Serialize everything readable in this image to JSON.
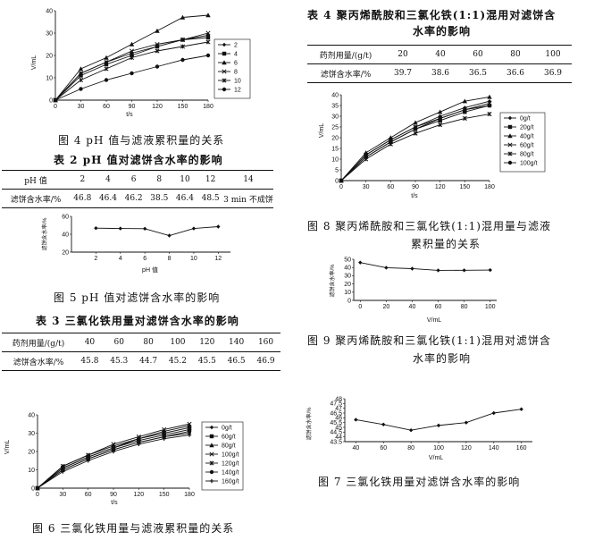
{
  "left": {
    "fig4": {
      "caption": "图 4    pH 值与滤液累积量的关系",
      "ylabel": "V/mL",
      "xlabel": "t/s",
      "yticks": [
        "0",
        "10",
        "20",
        "30",
        "40"
      ],
      "xticks": [
        "0",
        "30",
        "60",
        "90",
        "120",
        "150",
        "180"
      ],
      "legend": [
        "2",
        "4",
        "6",
        "8",
        "10",
        "12"
      ]
    },
    "table2": {
      "caption": "表 2    pH 值对滤饼含水率的影响",
      "header": [
        "pH 值",
        "2",
        "4",
        "6",
        "8",
        "10",
        "12",
        "14"
      ],
      "row": [
        "滤饼含水率/%",
        "46.8",
        "46.4",
        "46.2",
        "38.5",
        "46.4",
        "48.5",
        "3 min 不成饼"
      ]
    },
    "fig5": {
      "caption": "图 5    pH 值对滤饼含水率的影响",
      "ylabel": "滤饼含水率/%",
      "xlabel": "pH 值",
      "yticks": [
        "20",
        "40",
        "60"
      ],
      "xticks": [
        "2",
        "4",
        "6",
        "8",
        "10",
        "12"
      ]
    },
    "table3": {
      "caption": "表 3    三氯化铁用量对滤饼含水率的影响",
      "header": [
        "药剂用量/(g/t)",
        "40",
        "60",
        "80",
        "100",
        "120",
        "140",
        "160"
      ],
      "row": [
        "滤饼含水率/%",
        "45.8",
        "45.3",
        "44.7",
        "45.2",
        "45.5",
        "46.5",
        "46.9"
      ]
    },
    "fig6": {
      "caption": "图 6    三氯化铁用量与滤液累积量的关系",
      "ylabel": "V/mL",
      "xlabel": "t/s",
      "yticks": [
        "0",
        "10",
        "20",
        "30",
        "40"
      ],
      "xticks": [
        "0",
        "30",
        "60",
        "90",
        "120",
        "150",
        "180"
      ],
      "legend": [
        "0g/t",
        "60g/t",
        "80g/t",
        "100g/t",
        "120g/t",
        "140g/t",
        "160g/t"
      ]
    }
  },
  "right": {
    "table4": {
      "caption_line1": "表 4    聚丙烯酰胺和三氯化铁(1:1)混用对滤饼含",
      "caption_line2": "水率的影响",
      "header": [
        "药剂用量/(g/t)",
        "20",
        "40",
        "60",
        "80",
        "100"
      ],
      "row": [
        "滤饼含水率/%",
        "39.7",
        "38.6",
        "36.5",
        "36.6",
        "36.9"
      ]
    },
    "fig8": {
      "caption_line1": "图 8    聚丙烯酰胺和三氯化铁(1:1)混用量与滤液",
      "caption_line2": "累积量的关系",
      "ylabel": "V/mL",
      "xlabel": "t/s",
      "yticks": [
        "0",
        "5",
        "10",
        "15",
        "20",
        "25",
        "30",
        "35",
        "40"
      ],
      "xticks": [
        "0",
        "30",
        "60",
        "90",
        "120",
        "150",
        "180"
      ],
      "legend": [
        "0g/t",
        "20g/t",
        "40g/t",
        "60g/t",
        "80g/t",
        "100g/t"
      ]
    },
    "fig9": {
      "caption_line1": "图 9    聚丙烯酰胺和三氯化铁(1:1)混用对滤饼含",
      "caption_line2": "水率的影响",
      "ylabel": "滤饼含水率/%",
      "xlabel": "V/mL",
      "yticks": [
        "0",
        "10",
        "20",
        "30",
        "40",
        "50"
      ],
      "xticks": [
        "0",
        "20",
        "40",
        "60",
        "80",
        "100"
      ]
    },
    "fig7": {
      "caption": "图 7    三氯化铁用量对滤饼含水率的影响",
      "ylabel": "滤饼含水率/%",
      "xlabel": "V/mL",
      "yticks": [
        "43.5",
        "44",
        "44.5",
        "45",
        "45.5",
        "46",
        "46.5",
        "47",
        "47.5",
        "48"
      ],
      "xticks": [
        "40",
        "60",
        "80",
        "100",
        "120",
        "140",
        "160"
      ]
    }
  },
  "chart_data": [
    {
      "id": "fig4",
      "type": "line",
      "xlabel": "t/s",
      "ylabel": "V/mL",
      "xlim": [
        0,
        180
      ],
      "ylim": [
        0,
        40
      ],
      "x": [
        0,
        30,
        60,
        90,
        120,
        150,
        180
      ],
      "series": [
        {
          "name": "2",
          "values": [
            0,
            12,
            17,
            21,
            24,
            27,
            29
          ]
        },
        {
          "name": "4",
          "values": [
            0,
            11,
            16,
            20,
            24,
            27,
            28
          ]
        },
        {
          "name": "6",
          "values": [
            0,
            14,
            19,
            25,
            31,
            37,
            38
          ]
        },
        {
          "name": "8",
          "values": [
            0,
            12,
            17,
            22,
            25,
            27,
            30
          ]
        },
        {
          "name": "10",
          "values": [
            0,
            9,
            14,
            19,
            22,
            24,
            26
          ]
        },
        {
          "name": "12",
          "values": [
            0,
            5,
            9,
            12,
            15,
            18,
            20
          ]
        }
      ]
    },
    {
      "id": "fig5",
      "type": "line",
      "xlabel": "pH 值",
      "ylabel": "滤饼含水率/%",
      "ylim": [
        20,
        60
      ],
      "x": [
        2,
        4,
        6,
        8,
        10,
        12
      ],
      "values": [
        46.8,
        46.4,
        46.2,
        38.5,
        46.4,
        48.5
      ]
    },
    {
      "id": "fig6",
      "type": "line",
      "xlabel": "t/s",
      "ylabel": "V/mL",
      "xlim": [
        0,
        180
      ],
      "ylim": [
        0,
        40
      ],
      "x": [
        0,
        30,
        60,
        90,
        120,
        150,
        180
      ],
      "series": [
        {
          "name": "0g/t",
          "values": [
            0,
            10,
            16,
            21,
            25,
            28,
            30
          ]
        },
        {
          "name": "60g/t",
          "values": [
            0,
            11,
            17,
            22,
            26,
            29,
            32
          ]
        },
        {
          "name": "80g/t",
          "values": [
            0,
            12,
            18,
            23,
            27,
            31,
            34
          ]
        },
        {
          "name": "100g/t",
          "values": [
            0,
            12,
            18,
            24,
            28,
            32,
            35
          ]
        },
        {
          "name": "120g/t",
          "values": [
            0,
            11,
            17,
            22,
            27,
            30,
            33
          ]
        },
        {
          "name": "140g/t",
          "values": [
            0,
            10,
            16,
            21,
            25,
            28,
            31
          ]
        },
        {
          "name": "160g/t",
          "values": [
            0,
            9,
            15,
            20,
            24,
            27,
            29
          ]
        }
      ]
    },
    {
      "id": "fig8",
      "type": "line",
      "xlabel": "t/s",
      "ylabel": "V/mL",
      "xlim": [
        0,
        180
      ],
      "ylim": [
        0,
        40
      ],
      "x": [
        0,
        30,
        60,
        90,
        120,
        150,
        180
      ],
      "series": [
        {
          "name": "0g/t",
          "values": [
            0,
            12,
            19,
            25,
            30,
            34,
            37
          ]
        },
        {
          "name": "20g/t",
          "values": [
            0,
            11,
            18,
            24,
            28,
            32,
            35
          ]
        },
        {
          "name": "40g/t",
          "values": [
            0,
            13,
            20,
            27,
            32,
            37,
            39
          ]
        },
        {
          "name": "60g/t",
          "values": [
            0,
            12,
            19,
            25,
            29,
            33,
            36
          ]
        },
        {
          "name": "80g/t",
          "values": [
            0,
            10,
            17,
            22,
            26,
            29,
            31
          ]
        },
        {
          "name": "100g/t",
          "values": [
            0,
            11,
            18,
            24,
            29,
            33,
            35
          ]
        }
      ]
    },
    {
      "id": "fig9",
      "type": "line",
      "xlabel": "V/mL",
      "ylabel": "滤饼含水率/%",
      "ylim": [
        0,
        50
      ],
      "x": [
        0,
        20,
        40,
        60,
        80,
        100
      ],
      "values": [
        46,
        39.7,
        38.6,
        36.5,
        36.6,
        36.9
      ]
    },
    {
      "id": "fig7",
      "type": "line",
      "xlabel": "V/mL",
      "ylabel": "滤饼含水率/%",
      "ylim": [
        43.5,
        48
      ],
      "x": [
        40,
        60,
        80,
        100,
        120,
        140,
        160
      ],
      "values": [
        45.8,
        45.3,
        44.7,
        45.2,
        45.5,
        46.5,
        46.9
      ]
    }
  ]
}
